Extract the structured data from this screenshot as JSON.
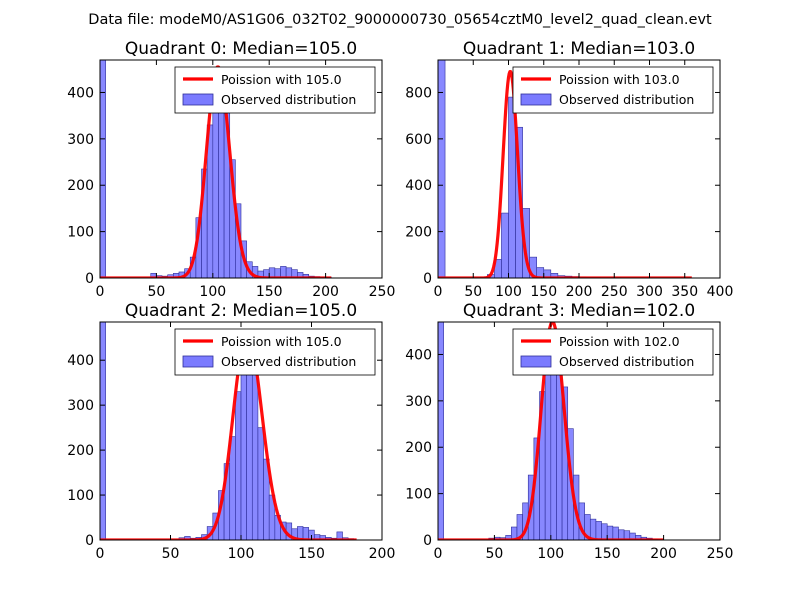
{
  "suptitle": "Data file: modeM0/AS1G06_032T02_9000000730_05654cztM0_level2_quad_clean.evt",
  "colors": {
    "bar_fill": "#7b7bff",
    "bar_edge": "#2e2e9a",
    "poisson_line": "#ff0000",
    "axis": "#000000",
    "background": "#ffffff"
  },
  "chart_data": [
    {
      "type": "bar",
      "title": "Quadrant 0: Median=105.0",
      "xlim": [
        0,
        250
      ],
      "ylim": [
        0,
        470
      ],
      "xticks": [
        0,
        50,
        100,
        150,
        200,
        250
      ],
      "yticks": [
        0,
        100,
        200,
        300,
        400
      ],
      "legend": {
        "placement": "top-right",
        "line_label": "Poission with 105.0",
        "bar_label": "Observed distribution"
      },
      "bin_width": 5,
      "bars": [
        [
          0,
          470
        ],
        [
          45,
          10
        ],
        [
          50,
          5
        ],
        [
          55,
          4
        ],
        [
          60,
          7
        ],
        [
          65,
          10
        ],
        [
          70,
          13
        ],
        [
          75,
          20
        ],
        [
          80,
          45
        ],
        [
          85,
          130
        ],
        [
          90,
          235
        ],
        [
          95,
          330
        ],
        [
          100,
          440
        ],
        [
          105,
          430
        ],
        [
          110,
          390
        ],
        [
          115,
          255
        ],
        [
          120,
          160
        ],
        [
          125,
          80
        ],
        [
          130,
          35
        ],
        [
          135,
          25
        ],
        [
          140,
          15
        ],
        [
          145,
          18
        ],
        [
          150,
          22
        ],
        [
          155,
          20
        ],
        [
          160,
          25
        ],
        [
          165,
          22
        ],
        [
          170,
          18
        ],
        [
          175,
          12
        ],
        [
          180,
          8
        ],
        [
          185,
          4
        ],
        [
          190,
          3
        ],
        [
          195,
          2
        ],
        [
          200,
          2
        ]
      ],
      "poisson": {
        "mean": 105.0,
        "x_range": [
          0,
          205
        ],
        "peak": 455
      }
    },
    {
      "type": "bar",
      "title": "Quadrant 1: Median=103.0",
      "xlim": [
        0,
        400
      ],
      "ylim": [
        0,
        940
      ],
      "xticks": [
        0,
        50,
        100,
        150,
        200,
        250,
        300,
        350,
        400
      ],
      "yticks": [
        0,
        200,
        400,
        600,
        800
      ],
      "legend": {
        "placement": "top-right",
        "line_label": "Poission with 103.0",
        "bar_label": "Observed distribution"
      },
      "bin_width": 10,
      "bars": [
        [
          0,
          940
        ],
        [
          60,
          4
        ],
        [
          70,
          15
        ],
        [
          80,
          80
        ],
        [
          90,
          280
        ],
        [
          100,
          780
        ],
        [
          110,
          650
        ],
        [
          120,
          300
        ],
        [
          130,
          90
        ],
        [
          140,
          45
        ],
        [
          150,
          35
        ],
        [
          160,
          20
        ],
        [
          170,
          10
        ],
        [
          180,
          8
        ],
        [
          190,
          6
        ],
        [
          200,
          4
        ],
        [
          210,
          3
        ],
        [
          220,
          3
        ],
        [
          230,
          2
        ],
        [
          240,
          2
        ],
        [
          250,
          2
        ],
        [
          260,
          1
        ],
        [
          270,
          1
        ],
        [
          280,
          1
        ],
        [
          290,
          1
        ],
        [
          300,
          1
        ],
        [
          310,
          1
        ],
        [
          320,
          1
        ],
        [
          330,
          1
        ],
        [
          340,
          1
        ]
      ],
      "poisson": {
        "mean": 103.0,
        "x_range": [
          0,
          360
        ],
        "peak": 890
      }
    },
    {
      "type": "bar",
      "title": "Quadrant 2: Median=105.0",
      "xlim": [
        0,
        200
      ],
      "ylim": [
        0,
        485
      ],
      "xticks": [
        0,
        50,
        100,
        150,
        200
      ],
      "yticks": [
        0,
        100,
        200,
        300,
        400
      ],
      "legend": {
        "placement": "top-right",
        "line_label": "Poission with 105.0",
        "bar_label": "Observed distribution"
      },
      "bin_width": 4,
      "bars": [
        [
          0,
          485
        ],
        [
          56,
          5
        ],
        [
          60,
          8
        ],
        [
          64,
          4
        ],
        [
          68,
          6
        ],
        [
          72,
          12
        ],
        [
          76,
          30
        ],
        [
          80,
          60
        ],
        [
          84,
          110
        ],
        [
          88,
          170
        ],
        [
          92,
          230
        ],
        [
          96,
          330
        ],
        [
          100,
          390
        ],
        [
          104,
          450
        ],
        [
          108,
          380
        ],
        [
          112,
          250
        ],
        [
          116,
          180
        ],
        [
          120,
          100
        ],
        [
          124,
          55
        ],
        [
          128,
          40
        ],
        [
          132,
          38
        ],
        [
          136,
          25
        ],
        [
          140,
          30
        ],
        [
          144,
          28
        ],
        [
          148,
          22
        ],
        [
          152,
          12
        ],
        [
          156,
          10
        ],
        [
          160,
          6
        ],
        [
          164,
          4
        ],
        [
          168,
          18
        ],
        [
          172,
          5
        ],
        [
          176,
          3
        ]
      ],
      "poisson": {
        "mean": 105.0,
        "x_range": [
          0,
          182
        ],
        "peak": 460
      }
    },
    {
      "type": "bar",
      "title": "Quadrant 3: Median=102.0",
      "xlim": [
        0,
        250
      ],
      "ylim": [
        0,
        470
      ],
      "xticks": [
        0,
        50,
        100,
        150,
        200,
        250
      ],
      "yticks": [
        0,
        100,
        200,
        300,
        400
      ],
      "legend": {
        "placement": "top-right",
        "line_label": "Poission with 102.0",
        "bar_label": "Observed distribution"
      },
      "bin_width": 5,
      "bars": [
        [
          0,
          470
        ],
        [
          45,
          4
        ],
        [
          50,
          6
        ],
        [
          55,
          5
        ],
        [
          60,
          10
        ],
        [
          65,
          28
        ],
        [
          70,
          55
        ],
        [
          75,
          80
        ],
        [
          80,
          140
        ],
        [
          85,
          220
        ],
        [
          90,
          320
        ],
        [
          95,
          395
        ],
        [
          100,
          440
        ],
        [
          105,
          400
        ],
        [
          110,
          330
        ],
        [
          115,
          240
        ],
        [
          120,
          140
        ],
        [
          125,
          80
        ],
        [
          130,
          55
        ],
        [
          135,
          45
        ],
        [
          140,
          40
        ],
        [
          145,
          35
        ],
        [
          150,
          30
        ],
        [
          155,
          28
        ],
        [
          160,
          22
        ],
        [
          165,
          20
        ],
        [
          170,
          15
        ],
        [
          175,
          10
        ],
        [
          180,
          6
        ],
        [
          185,
          4
        ],
        [
          190,
          2
        ],
        [
          195,
          1
        ]
      ],
      "poisson": {
        "mean": 102.0,
        "x_range": [
          0,
          200
        ],
        "peak": 470
      }
    }
  ]
}
